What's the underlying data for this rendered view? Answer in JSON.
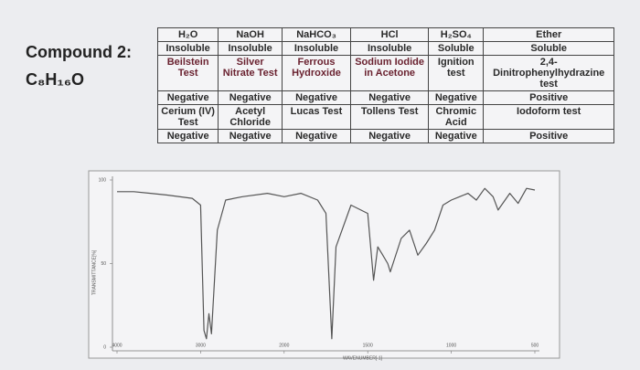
{
  "compound": {
    "label": "Compound 2:",
    "formula": "C₈H₁₆O"
  },
  "table": {
    "rows": [
      [
        "H₂O",
        "NaOH",
        "NaHCO₃",
        "HCl",
        "H₂SO₄",
        "Ether"
      ],
      [
        "Insoluble",
        "Insoluble",
        "Insoluble",
        "Insoluble",
        "Soluble",
        "Soluble"
      ],
      [
        "Beilstein Test",
        "Silver Nitrate Test",
        "Ferrous Hydroxide",
        "Sodium Iodide in Acetone",
        "Ignition test",
        "2,4-Dinitrophenylhydrazine test"
      ],
      [
        "Negative",
        "Negative",
        "Negative",
        "Negative",
        "Negative",
        "Positive"
      ],
      [
        "Cerium (IV) Test",
        "Acetyl Chloride",
        "Lucas Test",
        "Tollens Test",
        "Chromic Acid",
        "Iodoform test"
      ],
      [
        "Negative",
        "Negative",
        "Negative",
        "Negative",
        "Negative",
        "Positive"
      ]
    ]
  },
  "spectrum": {
    "type": "line",
    "ylabel": "TRANSMITTANCE[%]",
    "xlabel": "WAVENUMBER[-1]",
    "ylim": [
      0,
      100
    ],
    "yticks": [
      0,
      50,
      100
    ],
    "xticks": [
      4000,
      3000,
      2000,
      1500,
      1000,
      500
    ],
    "color": "#555555",
    "x": [
      4000,
      3800,
      3600,
      3400,
      3100,
      3000,
      2960,
      2930,
      2900,
      2870,
      2800,
      2700,
      2500,
      2200,
      2000,
      1900,
      1800,
      1750,
      1715,
      1690,
      1600,
      1500,
      1465,
      1440,
      1410,
      1380,
      1365,
      1300,
      1250,
      1200,
      1150,
      1100,
      1050,
      1000,
      950,
      900,
      850,
      800,
      750,
      720,
      650,
      600,
      550,
      500
    ],
    "values": [
      93,
      93,
      92,
      91,
      89,
      85,
      10,
      5,
      20,
      8,
      70,
      88,
      90,
      92,
      90,
      92,
      88,
      80,
      5,
      60,
      85,
      80,
      40,
      60,
      55,
      50,
      45,
      65,
      70,
      55,
      62,
      70,
      85,
      88,
      90,
      92,
      88,
      95,
      90,
      82,
      92,
      86,
      95,
      94
    ]
  }
}
